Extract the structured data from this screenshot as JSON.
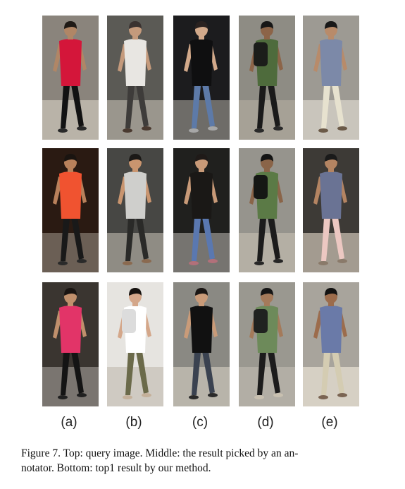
{
  "figure": {
    "columns": [
      "(a)",
      "(b)",
      "(c)",
      "(d)",
      "(e)"
    ],
    "rows": [
      "query",
      "annotator",
      "method"
    ],
    "caption_line1": "Figure 7.  Top:  query image.  Middle:  the result picked by an an-",
    "caption_line2": "notator.  Bottom:  top1 result by our method.",
    "people": [
      [
        {
          "bg": "#8a847c",
          "floor": "#b9b3a8",
          "skin": "#b08666",
          "hair": "#1e1a16",
          "shirt": "#d4163a",
          "pants": "#121212",
          "shoes": "#2a2a2a",
          "bag": ""
        },
        {
          "bg": "#5b5a55",
          "floor": "#9a968d",
          "skin": "#c49a7c",
          "hair": "#3a3230",
          "shirt": "#e8e6e2",
          "pants": "#3e3c3a",
          "shoes": "#4a3a30",
          "bag": ""
        },
        {
          "bg": "#1c1c1e",
          "floor": "#6e6c68",
          "skin": "#d2a98a",
          "hair": "#2a2220",
          "shirt": "#0f0f10",
          "pants": "#5d7aa8",
          "shoes": "#a7a7a7",
          "bag": ""
        },
        {
          "bg": "#8e8c84",
          "floor": "#a6a196",
          "skin": "#8c6448",
          "hair": "#161616",
          "shirt": "#4e6b3c",
          "pants": "#1a1a1a",
          "shoes": "#2a2a2a",
          "bag": "#1b1d1a"
        },
        {
          "bg": "#9d9a93",
          "floor": "#c9c5bc",
          "skin": "#b88b6a",
          "hair": "#181818",
          "shirt": "#7c89a8",
          "pants": "#e7e2cf",
          "shoes": "#6b5a48",
          "bag": ""
        }
      ],
      [
        {
          "bg": "#2a1a12",
          "floor": "#6b5f55",
          "skin": "#b9815b",
          "hair": "#1a1410",
          "shirt": "#f05330",
          "pants": "#191919",
          "shoes": "#2a2a2a",
          "bag": ""
        },
        {
          "bg": "#474744",
          "floor": "#8f8c84",
          "skin": "#c9956f",
          "hair": "#1b1917",
          "shirt": "#cfcfcc",
          "pants": "#2a2a28",
          "shoes": "#8a6a50",
          "bag": ""
        },
        {
          "bg": "#20201e",
          "floor": "#767470",
          "skin": "#c89a78",
          "hair": "#1f1a18",
          "shirt": "#1a1816",
          "pants": "#5a78b0",
          "shoes": "#b2707a",
          "bag": ""
        },
        {
          "bg": "#96948d",
          "floor": "#b4afa4",
          "skin": "#8a6448",
          "hair": "#141414",
          "shirt": "#5b7a46",
          "pants": "#1c1c1c",
          "shoes": "#262626",
          "bag": "#151714"
        },
        {
          "bg": "#3d3a36",
          "floor": "#a39b90",
          "skin": "#b48462",
          "hair": "#1a1a1a",
          "shirt": "#6a7394",
          "pants": "#ecc8c2",
          "shoes": "#8a7a6a",
          "bag": ""
        }
      ],
      [
        {
          "bg": "#3a3530",
          "floor": "#7a7570",
          "skin": "#c0906c",
          "hair": "#1a1512",
          "shirt": "#e23468",
          "pants": "#141414",
          "shoes": "#202020",
          "bag": ""
        },
        {
          "bg": "#e6e4e0",
          "floor": "#cfcac2",
          "skin": "#d4a78a",
          "hair": "#16120f",
          "shirt": "#ffffff",
          "pants": "#6b6a4a",
          "shoes": "#c4b09a",
          "bag": "#dcdcdc"
        },
        {
          "bg": "#8a8983",
          "floor": "#b8b4aa",
          "skin": "#c99b79",
          "hair": "#1a1614",
          "shirt": "#111111",
          "pants": "#3a4250",
          "shoes": "#2a2a2a",
          "bag": ""
        },
        {
          "bg": "#9a9890",
          "floor": "#b2aea5",
          "skin": "#a47a5a",
          "hair": "#151515",
          "shirt": "#6d8a5a",
          "pants": "#1c1c1c",
          "shoes": "#c8c0b0",
          "bag": "#202220"
        },
        {
          "bg": "#a8a49c",
          "floor": "#d6d0c4",
          "skin": "#9c6c4c",
          "hair": "#121212",
          "shirt": "#6a7aa8",
          "pants": "#d4ccb2",
          "shoes": "#7a6452",
          "bag": ""
        }
      ]
    ]
  }
}
